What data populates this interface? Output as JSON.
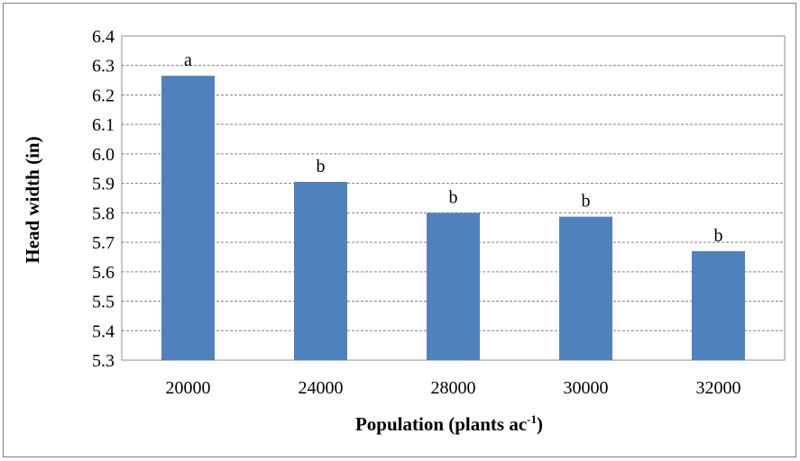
{
  "chart_data": {
    "type": "bar",
    "title": "",
    "xlabel": "Population (plants ac",
    "xlabel_superscript": "-1",
    "xlabel_suffix": ")",
    "ylabel": "Head width (in)",
    "categories": [
      "20000",
      "24000",
      "28000",
      "30000",
      "32000"
    ],
    "values": [
      6.265,
      5.905,
      5.8,
      5.787,
      5.67
    ],
    "data_labels": [
      "a",
      "b",
      "b",
      "b",
      "b"
    ],
    "ylim": [
      5.3,
      6.4
    ],
    "yticks": [
      "5.3",
      "5.4",
      "5.5",
      "5.6",
      "5.7",
      "5.8",
      "5.9",
      "6.0",
      "6.1",
      "6.2",
      "6.3",
      "6.4"
    ],
    "grid": true,
    "grid_style": "dashed",
    "legend": "none",
    "bar_color": "#4f81bd"
  }
}
